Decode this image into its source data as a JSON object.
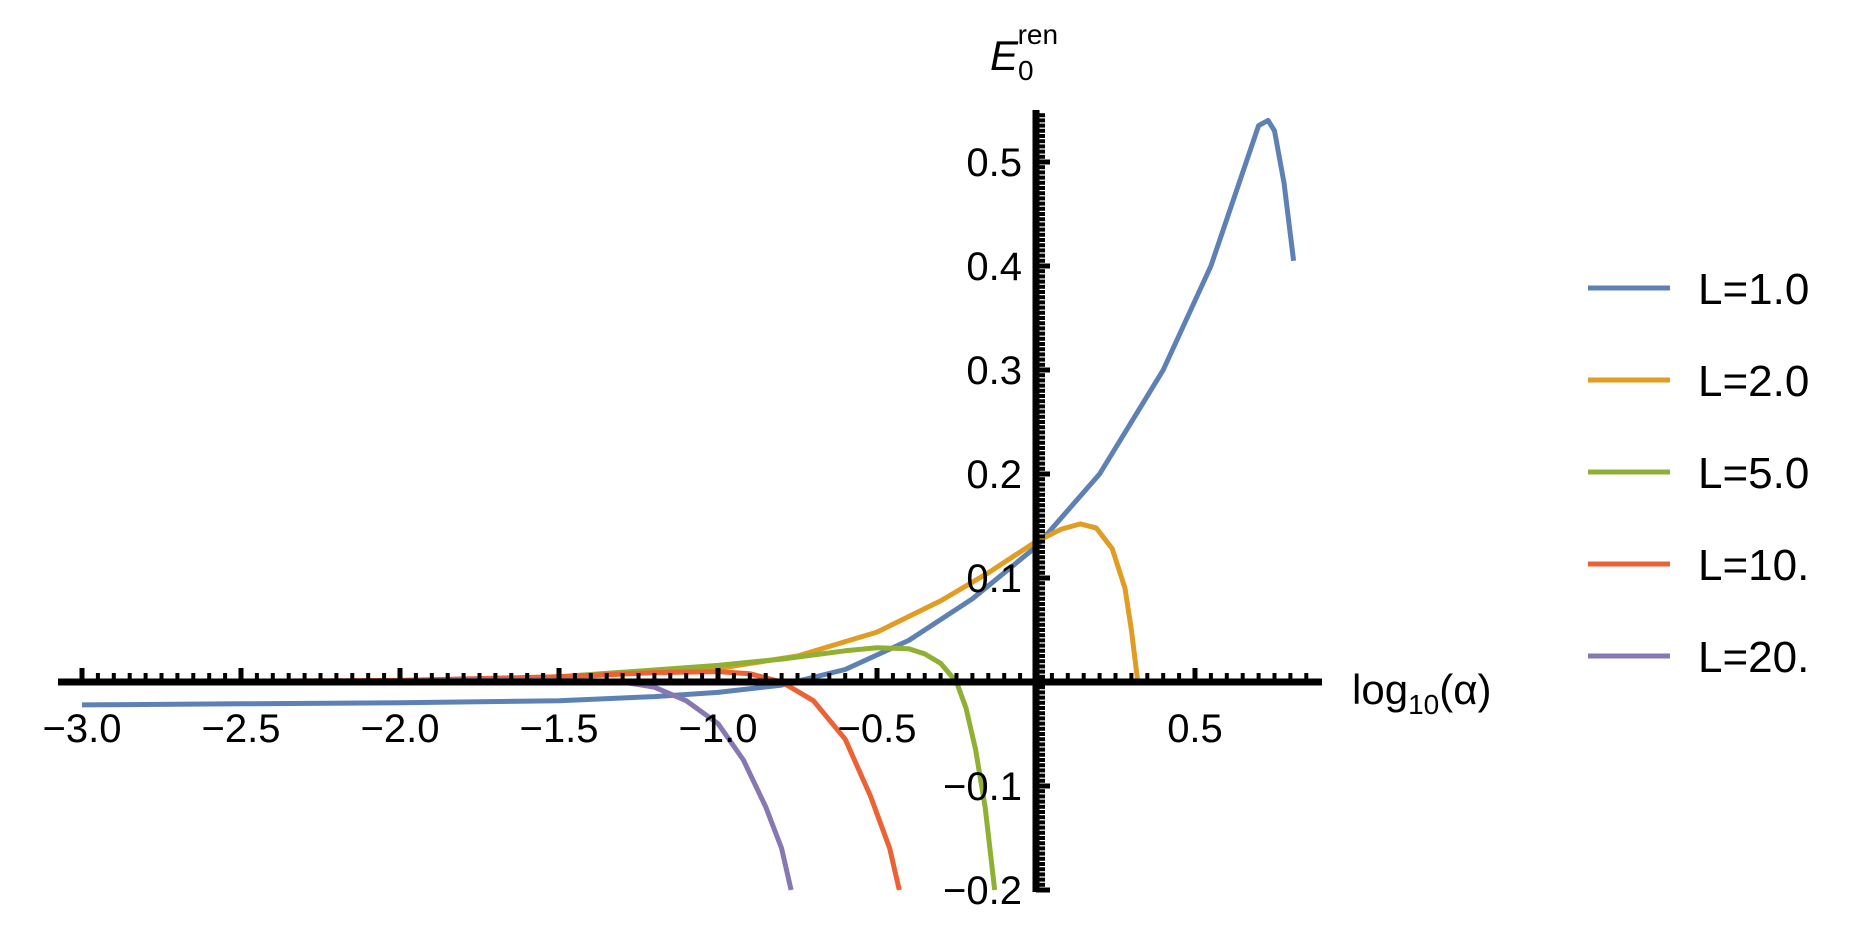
{
  "chart_data": {
    "type": "line",
    "xlabel": {
      "base": "log",
      "subscript": "10",
      "rest": "(α)"
    },
    "ylabel": {
      "main": "E",
      "subscript": "0",
      "superscript": "ren"
    },
    "xlim": [
      -3.05,
      0.9
    ],
    "ylim": [
      -0.2,
      0.55
    ],
    "x_ticks": [
      {
        "value": -3.0,
        "label": "−3.0"
      },
      {
        "value": -2.5,
        "label": "−2.5"
      },
      {
        "value": -2.0,
        "label": "−2.0"
      },
      {
        "value": -1.5,
        "label": "−1.5"
      },
      {
        "value": -1.0,
        "label": "−1.0"
      },
      {
        "value": -0.5,
        "label": "−0.5"
      },
      {
        "value": 0.5,
        "label": "0.5"
      }
    ],
    "y_ticks": [
      {
        "value": 0.5,
        "label": "0.5"
      },
      {
        "value": 0.4,
        "label": "0.4"
      },
      {
        "value": 0.3,
        "label": "0.3"
      },
      {
        "value": 0.2,
        "label": "0.2"
      },
      {
        "value": 0.1,
        "label": "0.1"
      },
      {
        "value": -0.1,
        "label": "−0.1"
      },
      {
        "value": -0.2,
        "label": "−0.2"
      }
    ],
    "legend_position": "right",
    "series": [
      {
        "name": "L=1.0",
        "color": "#5E81B5",
        "points": [
          [
            -3.0,
            -0.022
          ],
          [
            -2.5,
            -0.021
          ],
          [
            -2.0,
            -0.02
          ],
          [
            -1.5,
            -0.018
          ],
          [
            -1.2,
            -0.014
          ],
          [
            -1.0,
            -0.01
          ],
          [
            -0.8,
            -0.003
          ],
          [
            -0.6,
            0.012
          ],
          [
            -0.4,
            0.04
          ],
          [
            -0.2,
            0.08
          ],
          [
            0.0,
            0.13
          ],
          [
            0.2,
            0.2
          ],
          [
            0.4,
            0.3
          ],
          [
            0.55,
            0.4
          ],
          [
            0.65,
            0.49
          ],
          [
            0.7,
            0.535
          ],
          [
            0.73,
            0.54
          ],
          [
            0.75,
            0.53
          ],
          [
            0.78,
            0.48
          ],
          [
            0.81,
            0.405
          ]
        ]
      },
      {
        "name": "L=2.0",
        "color": "#E19C24",
        "points": [
          [
            -3.0,
            0.0
          ],
          [
            -2.5,
            0.0005
          ],
          [
            -2.0,
            0.001
          ],
          [
            -1.5,
            0.004
          ],
          [
            -1.0,
            0.013
          ],
          [
            -0.75,
            0.025
          ],
          [
            -0.5,
            0.048
          ],
          [
            -0.3,
            0.078
          ],
          [
            -0.15,
            0.105
          ],
          [
            0.0,
            0.135
          ],
          [
            0.08,
            0.147
          ],
          [
            0.14,
            0.152
          ],
          [
            0.19,
            0.148
          ],
          [
            0.24,
            0.128
          ],
          [
            0.28,
            0.09
          ],
          [
            0.3,
            0.05
          ],
          [
            0.32,
            0.0
          ]
        ]
      },
      {
        "name": "L=5.0",
        "color": "#8FB032",
        "points": [
          [
            -3.0,
            0.0
          ],
          [
            -2.0,
            0.001
          ],
          [
            -1.5,
            0.005
          ],
          [
            -1.0,
            0.016
          ],
          [
            -0.8,
            0.022
          ],
          [
            -0.6,
            0.03
          ],
          [
            -0.5,
            0.033
          ],
          [
            -0.4,
            0.032
          ],
          [
            -0.35,
            0.027
          ],
          [
            -0.3,
            0.018
          ],
          [
            -0.25,
            0.0
          ],
          [
            -0.22,
            -0.025
          ],
          [
            -0.19,
            -0.065
          ],
          [
            -0.16,
            -0.12
          ],
          [
            -0.13,
            -0.2
          ]
        ]
      },
      {
        "name": "L=10.",
        "color": "#EB6235",
        "points": [
          [
            -3.0,
            0.0
          ],
          [
            -2.0,
            0.0015
          ],
          [
            -1.5,
            0.005
          ],
          [
            -1.2,
            0.009
          ],
          [
            -1.0,
            0.01
          ],
          [
            -0.9,
            0.008
          ],
          [
            -0.8,
            0.0
          ],
          [
            -0.7,
            -0.018
          ],
          [
            -0.6,
            -0.055
          ],
          [
            -0.52,
            -0.11
          ],
          [
            -0.46,
            -0.16
          ],
          [
            -0.43,
            -0.2
          ]
        ]
      },
      {
        "name": "L=20.",
        "color": "#8778B3",
        "points": [
          [
            -3.0,
            0.0
          ],
          [
            -2.0,
            0.001
          ],
          [
            -1.5,
            0.002
          ],
          [
            -1.3,
            0.0
          ],
          [
            -1.2,
            -0.005
          ],
          [
            -1.1,
            -0.018
          ],
          [
            -1.0,
            -0.04
          ],
          [
            -0.92,
            -0.075
          ],
          [
            -0.85,
            -0.12
          ],
          [
            -0.8,
            -0.16
          ],
          [
            -0.77,
            -0.2
          ]
        ]
      }
    ]
  }
}
